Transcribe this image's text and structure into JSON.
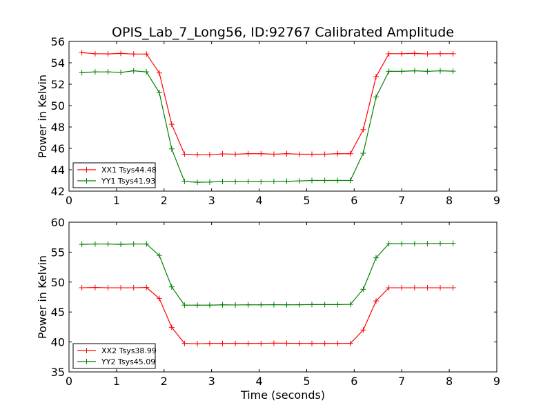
{
  "chart_data": [
    {
      "type": "line",
      "title": "OPIS_Lab_7_Long56, ID:92767 Calibrated Amplitude",
      "xlabel": "",
      "ylabel": "Power in Kelvin",
      "xlim": [
        0,
        9
      ],
      "ylim": [
        42,
        56
      ],
      "xticks": [
        0,
        1,
        2,
        3,
        4,
        5,
        6,
        7,
        8,
        9
      ],
      "yticks": [
        42,
        44,
        46,
        48,
        50,
        52,
        54,
        56
      ],
      "grid": false,
      "legend_position": "lower-left",
      "x": [
        0.27,
        0.55,
        0.82,
        1.09,
        1.36,
        1.63,
        1.9,
        2.16,
        2.43,
        2.7,
        2.96,
        3.23,
        3.5,
        3.77,
        4.04,
        4.31,
        4.58,
        4.85,
        5.11,
        5.38,
        5.65,
        5.92,
        6.19,
        6.46,
        6.73,
        7.0,
        7.27,
        7.54,
        7.81,
        8.08
      ],
      "series": [
        {
          "name": "XX1 Tsys44.48",
          "color": "#ff0000",
          "values": [
            54.95,
            54.85,
            54.83,
            54.88,
            54.82,
            54.82,
            53.05,
            48.25,
            45.45,
            45.4,
            45.4,
            45.48,
            45.45,
            45.5,
            45.5,
            45.45,
            45.5,
            45.45,
            45.45,
            45.45,
            45.5,
            45.5,
            47.75,
            52.7,
            54.85,
            54.85,
            54.88,
            54.83,
            54.85,
            54.85
          ]
        },
        {
          "name": "YY1 Tsys41.93",
          "color": "#008000",
          "values": [
            53.08,
            53.15,
            53.15,
            53.1,
            53.25,
            53.15,
            51.2,
            45.95,
            42.9,
            42.83,
            42.85,
            42.9,
            42.88,
            42.9,
            42.88,
            42.9,
            42.92,
            42.95,
            43.0,
            43.0,
            43.0,
            43.0,
            45.55,
            50.8,
            53.2,
            53.2,
            53.25,
            53.2,
            53.25,
            53.22
          ]
        }
      ]
    },
    {
      "type": "line",
      "title": "",
      "xlabel": "Time (seconds)",
      "ylabel": "Power in Kelvin",
      "xlim": [
        0,
        9
      ],
      "ylim": [
        35,
        60
      ],
      "xticks": [
        0,
        1,
        2,
        3,
        4,
        5,
        6,
        7,
        8,
        9
      ],
      "yticks": [
        35,
        40,
        45,
        50,
        55,
        60
      ],
      "grid": false,
      "legend_position": "lower-left",
      "x": [
        0.27,
        0.55,
        0.82,
        1.09,
        1.36,
        1.63,
        1.9,
        2.16,
        2.43,
        2.7,
        2.96,
        3.23,
        3.5,
        3.77,
        4.04,
        4.31,
        4.58,
        4.85,
        5.11,
        5.38,
        5.65,
        5.92,
        6.19,
        6.46,
        6.73,
        7.0,
        7.27,
        7.54,
        7.81,
        8.08
      ],
      "series": [
        {
          "name": "XX2 Tsys38.99",
          "color": "#ff0000",
          "values": [
            49.05,
            49.1,
            49.05,
            49.05,
            49.05,
            49.1,
            47.25,
            42.45,
            39.75,
            39.7,
            39.75,
            39.75,
            39.75,
            39.75,
            39.75,
            39.8,
            39.78,
            39.75,
            39.75,
            39.75,
            39.75,
            39.75,
            42.0,
            46.85,
            49.05,
            49.05,
            49.05,
            49.05,
            49.05,
            49.05
          ]
        },
        {
          "name": "YY2 Tsys45.09",
          "color": "#008000",
          "values": [
            56.3,
            56.35,
            56.35,
            56.3,
            56.35,
            56.35,
            54.45,
            49.2,
            46.15,
            46.15,
            46.15,
            46.2,
            46.18,
            46.2,
            46.2,
            46.22,
            46.2,
            46.22,
            46.25,
            46.25,
            46.25,
            46.28,
            48.8,
            54.05,
            56.4,
            56.4,
            56.42,
            56.42,
            56.45,
            56.48
          ]
        }
      ]
    }
  ]
}
